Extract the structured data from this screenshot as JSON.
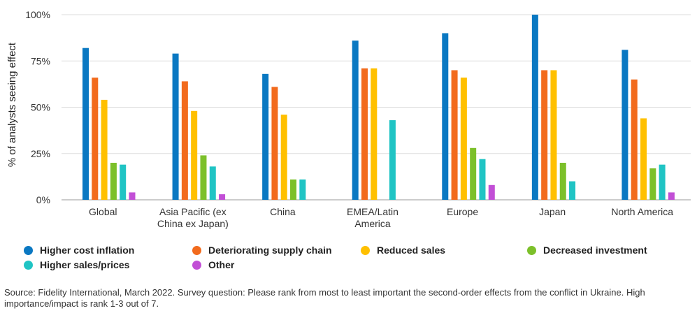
{
  "chart_data": {
    "type": "bar",
    "title": "",
    "xlabel": "",
    "ylabel": "% of analysts seeing effect",
    "ylim": [
      0,
      100
    ],
    "yticks": [
      0,
      25,
      50,
      75,
      100
    ],
    "ytick_labels": [
      "0%",
      "25%",
      "50%",
      "75%",
      "100%"
    ],
    "grid": true,
    "legend_position": "bottom",
    "categories": [
      [
        "Global"
      ],
      [
        "Asia Pacific (ex",
        "China ex Japan)"
      ],
      [
        "China"
      ],
      [
        "EMEA/Latin",
        "America"
      ],
      [
        "Europe"
      ],
      [
        "Japan"
      ],
      [
        "North America"
      ]
    ],
    "series": [
      {
        "name": "Higher cost inflation",
        "color": "#0a78c2",
        "values": [
          82,
          79,
          68,
          86,
          90,
          100,
          81
        ]
      },
      {
        "name": "Deteriorating supply chain",
        "color": "#f26b1d",
        "values": [
          66,
          64,
          61,
          71,
          70,
          70,
          65
        ]
      },
      {
        "name": "Reduced sales",
        "color": "#ffc000",
        "values": [
          54,
          48,
          46,
          71,
          66,
          70,
          44
        ]
      },
      {
        "name": "Decreased investment",
        "color": "#7cc02a",
        "values": [
          20,
          24,
          11,
          0,
          28,
          20,
          17
        ]
      },
      {
        "name": "Higher sales/prices",
        "color": "#20c4c4",
        "values": [
          19,
          18,
          11,
          43,
          22,
          10,
          19
        ]
      },
      {
        "name": "Other",
        "color": "#c24fd6",
        "values": [
          4,
          3,
          0,
          0,
          8,
          0,
          4
        ]
      }
    ]
  },
  "source_note": "Source: Fidelity International, March 2022. Survey question: Please rank from most to least important the second-order effects from the conflict in Ukraine. High importance/impact is rank 1-3 out of 7."
}
